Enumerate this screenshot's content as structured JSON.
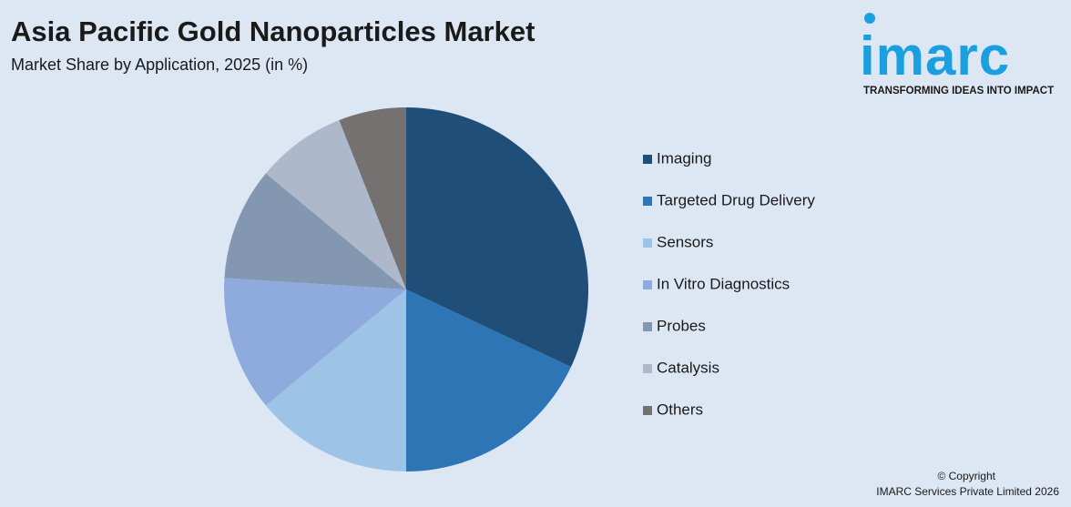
{
  "chart_data": {
    "type": "pie",
    "title": "Asia Pacific Gold Nanoparticles Market",
    "subtitle": "Market Share by Application, 2025 (in %)",
    "categories": [
      "Imaging",
      "Targeted Drug Delivery",
      "Sensors",
      "In Vitro Diagnostics",
      "Probes",
      "Catalysis",
      "Others"
    ],
    "values": [
      32,
      18,
      14,
      12,
      10,
      8,
      6
    ],
    "colors": [
      "#1f4e79",
      "#2e75b6",
      "#9dc3e6",
      "#8faadc",
      "#8497b0",
      "#adb9ca",
      "#767171"
    ],
    "legend": "right"
  },
  "logo": {
    "name": "imarc",
    "tagline": "TRANSFORMING IDEAS INTO IMPACT"
  },
  "footer": {
    "copyright": "© Copyright",
    "owner": "IMARC Services Private Limited 2026"
  }
}
